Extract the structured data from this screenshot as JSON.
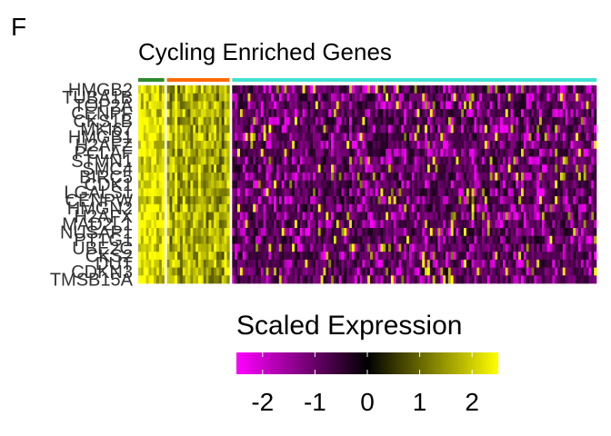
{
  "panel_label": "F",
  "chart_data": {
    "type": "heatmap",
    "title": "Cycling Enriched Genes",
    "genes": [
      "HMGB2",
      "TUBA1B",
      "TOP2A",
      "CENPF",
      "CKS1B",
      "MKI67",
      "HMGB1",
      "H2AFZ",
      "PCLAF",
      "STMN1",
      "SMC4",
      "BIRC5",
      "CDK1",
      "LGALS1",
      "CENPW",
      "HMGN2",
      "H2AFX",
      "MAD2L1",
      "NUSAP1",
      "PTTG1",
      "UBE2C",
      "CKS2",
      "DUT",
      "CDKN3",
      "TMSB15A"
    ],
    "clusters": [
      {
        "color": "#2e8b2e",
        "columns": 10,
        "level": 2.4
      },
      {
        "color": "#ff6a00",
        "columns": 24,
        "level": 1.8
      },
      {
        "color": "#40e0d0",
        "columns": 140,
        "level": -0.8
      }
    ],
    "color_scale": {
      "low": "#ff00ff",
      "mid": "#000000",
      "high": "#ffff00",
      "domain": [
        -2.5,
        0,
        2.5
      ]
    },
    "legend": {
      "title": "Scaled Expression",
      "ticks": [
        "-2",
        "-1",
        "0",
        "1",
        "2"
      ],
      "tick_values": [
        -2,
        -1,
        0,
        1,
        2
      ],
      "range": [
        -2.5,
        2.5
      ]
    }
  }
}
